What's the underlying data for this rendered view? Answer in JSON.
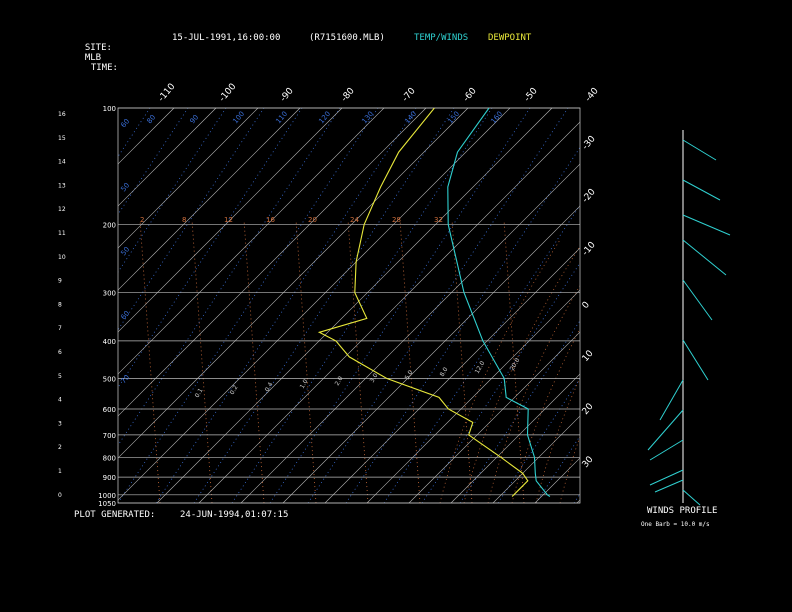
{
  "header": {
    "site_label": "SITE:",
    "site_value": "MLB",
    "time_label": "TIME:",
    "time_value": "15-JUL-1991,16:00:00",
    "file_name": "(R7151600.MLB)",
    "legend_temp": "TEMP/WINDS",
    "legend_dew": "DEWPOINT"
  },
  "footer": {
    "generated_label": "PLOT GENERATED:",
    "generated_value": "24-JUN-1994,01:07:15",
    "winds_title": "WINDS PROFILE",
    "winds_note": "One Barb = 10.0 m/s"
  },
  "colors": {
    "temp": "#2fd0d0",
    "dewpoint": "#e8e83a",
    "grid": "#bbbbbb",
    "dry_adiabat": "#3a6fd8",
    "mixing_ratio": "#d2703c",
    "moist_adiabat": "#b0b0b0",
    "background": "#000000"
  },
  "chart_data": {
    "type": "line",
    "diagram": "skew-T log-P",
    "pressure_levels": [
      100,
      200,
      300,
      400,
      500,
      600,
      700,
      800,
      900,
      1000,
      1050
    ],
    "pressure_labels": [
      "100",
      "200",
      "300",
      "400",
      "500",
      "600",
      "700",
      "800",
      "900",
      "1000",
      "1050"
    ],
    "ylim_pressure": [
      100,
      1050
    ],
    "height_ticks_km": [
      "16",
      "15",
      "14",
      "13",
      "12",
      "11",
      "10",
      "9",
      "8",
      "7",
      "6",
      "5",
      "4",
      "3",
      "2",
      "1",
      "0"
    ],
    "top_temperature_labels": [
      "-110",
      "-100",
      "-90",
      "-80",
      "-70",
      "-60",
      "-50",
      "-40"
    ],
    "right_temperature_labels": [
      "-30",
      "-20",
      "-10",
      "0",
      "10",
      "20",
      "30"
    ],
    "mixing_ratio_labels": [
      "2",
      "8",
      "12",
      "16",
      "20",
      "24",
      "28",
      "32"
    ],
    "lower_ratio_labels": [
      "0.1",
      "0.2",
      "0.4",
      "1.0",
      "2.0",
      "3.0",
      "5.0",
      "8.0",
      "12.0",
      "20.0"
    ],
    "dry_adiabat_labels": [
      "60",
      "50",
      "50",
      "60",
      "70",
      "80",
      "90",
      "100",
      "110",
      "120",
      "130",
      "140",
      "150",
      "160"
    ],
    "series": [
      {
        "name": "TEMP/WINDS",
        "points": [
          {
            "p": 100,
            "t": -75
          },
          {
            "p": 130,
            "t": -72
          },
          {
            "p": 160,
            "t": -66
          },
          {
            "p": 200,
            "t": -57
          },
          {
            "p": 250,
            "t": -46
          },
          {
            "p": 300,
            "t": -37
          },
          {
            "p": 400,
            "t": -21
          },
          {
            "p": 500,
            "t": -7
          },
          {
            "p": 560,
            "t": -2
          },
          {
            "p": 600,
            "t": 6
          },
          {
            "p": 700,
            "t": 12
          },
          {
            "p": 800,
            "t": 19
          },
          {
            "p": 880,
            "t": 23
          },
          {
            "p": 920,
            "t": 25
          },
          {
            "p": 1000,
            "t": 31
          },
          {
            "p": 1010,
            "t": 32
          }
        ]
      },
      {
        "name": "DEWPOINT",
        "points": [
          {
            "p": 100,
            "t": -88
          },
          {
            "p": 130,
            "t": -86
          },
          {
            "p": 160,
            "t": -82
          },
          {
            "p": 200,
            "t": -77
          },
          {
            "p": 250,
            "t": -70
          },
          {
            "p": 300,
            "t": -63
          },
          {
            "p": 350,
            "t": -54
          },
          {
            "p": 380,
            "t": -62
          },
          {
            "p": 400,
            "t": -56
          },
          {
            "p": 440,
            "t": -49
          },
          {
            "p": 500,
            "t": -35
          },
          {
            "p": 560,
            "t": -18
          },
          {
            "p": 600,
            "t": -13
          },
          {
            "p": 650,
            "t": -4
          },
          {
            "p": 700,
            "t": -2
          },
          {
            "p": 800,
            "t": 11
          },
          {
            "p": 880,
            "t": 20
          },
          {
            "p": 920,
            "t": 23
          },
          {
            "p": 1000,
            "t": 23
          },
          {
            "p": 1010,
            "t": 23
          }
        ]
      }
    ],
    "grid": true
  }
}
